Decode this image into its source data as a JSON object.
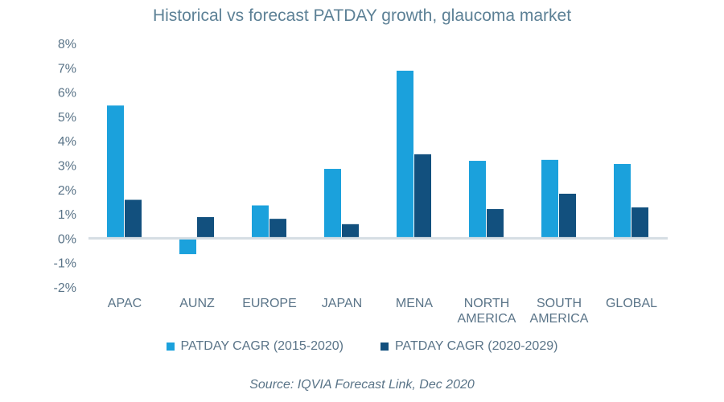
{
  "chart_data": {
    "type": "bar",
    "title": "Historical vs forecast PATDAY growth, glaucoma market",
    "categories": [
      [
        "APAC"
      ],
      [
        "AUNZ"
      ],
      [
        "EUROPE"
      ],
      [
        "JAPAN"
      ],
      [
        "MENA"
      ],
      [
        "NORTH",
        "AMERICA"
      ],
      [
        "SOUTH",
        "AMERICA"
      ],
      [
        "GLOBAL"
      ]
    ],
    "series": [
      {
        "name": "PATDAY CAGR (2015-2020)",
        "color": "#1ba1dc",
        "values": [
          5.45,
          -0.65,
          1.35,
          2.85,
          6.88,
          3.18,
          3.22,
          3.05
        ]
      },
      {
        "name": "PATDAY CAGR (2020-2029)",
        "color": "#12507e",
        "values": [
          1.58,
          0.87,
          0.8,
          0.58,
          3.45,
          1.2,
          1.83,
          1.27
        ]
      }
    ],
    "ylim": [
      -2,
      8
    ],
    "ytick_step": 1,
    "ytick_format": "percent",
    "xlabel": "",
    "ylabel": "",
    "legend_position": "bottom",
    "grid": false,
    "zero_line_color": "#d5dde3"
  },
  "source": "Source: IQVIA Forecast Link, Dec 2020"
}
